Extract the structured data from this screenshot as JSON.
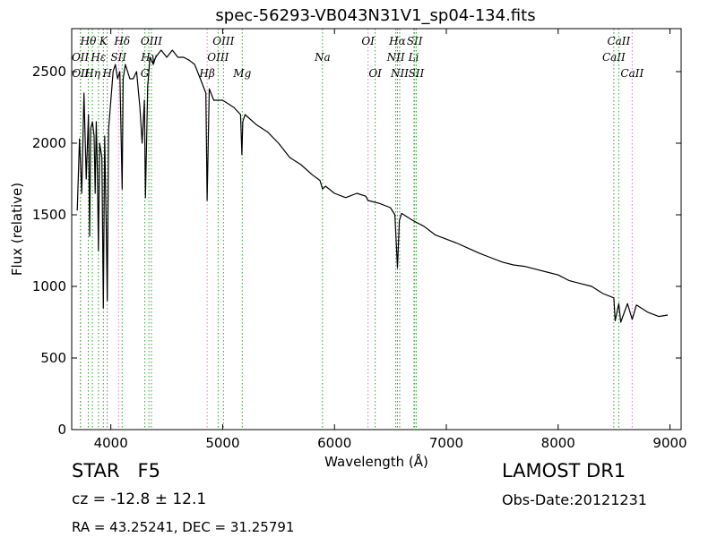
{
  "chart_data": {
    "type": "line",
    "title": "spec-56293-VB043N31V1_sp04-134.fits",
    "xlabel": "Wavelength (Å)",
    "ylabel": "Flux (relative)",
    "xlim": [
      3650,
      9100
    ],
    "ylim": [
      0,
      2800
    ],
    "xticks": [
      4000,
      5000,
      6000,
      7000,
      8000,
      9000
    ],
    "yticks": [
      0,
      500,
      1000,
      1500,
      2000,
      2500
    ],
    "grid": false,
    "series": [
      {
        "color": "#000000",
        "x": [
          3700,
          3720,
          3740,
          3760,
          3780,
          3800,
          3810,
          3820,
          3835,
          3850,
          3860,
          3870,
          3880,
          3889,
          3900,
          3920,
          3933,
          3945,
          3960,
          3968,
          3980,
          4000,
          4020,
          4040,
          4060,
          4080,
          4101,
          4110,
          4130,
          4150,
          4170,
          4200,
          4230,
          4260,
          4280,
          4300,
          4310,
          4330,
          4340,
          4350,
          4380,
          4400,
          4450,
          4500,
          4550,
          4600,
          4650,
          4700,
          4750,
          4800,
          4850,
          4861,
          4880,
          4920,
          5000,
          5100,
          5160,
          5172,
          5180,
          5200,
          5300,
          5400,
          5500,
          5600,
          5700,
          5800,
          5870,
          5893,
          5920,
          6000,
          6100,
          6200,
          6280,
          6300,
          6400,
          6500,
          6540,
          6563,
          6580,
          6600,
          6700,
          6800,
          6900,
          7000,
          7100,
          7200,
          7300,
          7400,
          7500,
          7600,
          7700,
          7800,
          7900,
          8000,
          8100,
          8200,
          8300,
          8400,
          8498,
          8510,
          8542,
          8560,
          8620,
          8662,
          8700,
          8800,
          8900,
          8980
        ],
        "y": [
          1530,
          2030,
          1650,
          2350,
          1750,
          2200,
          1350,
          2100,
          2150,
          2050,
          1650,
          2150,
          1800,
          1250,
          2000,
          1900,
          850,
          2050,
          1350,
          900,
          2100,
          2300,
          2500,
          2550,
          2450,
          2500,
          1680,
          2450,
          2550,
          2500,
          2450,
          2450,
          2500,
          2250,
          2000,
          2300,
          1620,
          2400,
          2500,
          2600,
          2550,
          2600,
          2650,
          2600,
          2650,
          2600,
          2600,
          2580,
          2550,
          2450,
          2350,
          1600,
          2380,
          2300,
          2300,
          2250,
          2200,
          1920,
          2150,
          2200,
          2130,
          2080,
          2000,
          1900,
          1850,
          1780,
          1740,
          1680,
          1700,
          1650,
          1620,
          1650,
          1630,
          1600,
          1580,
          1550,
          1500,
          1130,
          1460,
          1510,
          1460,
          1420,
          1360,
          1330,
          1300,
          1265,
          1230,
          1200,
          1170,
          1150,
          1140,
          1120,
          1100,
          1080,
          1040,
          1020,
          1000,
          950,
          920,
          760,
          880,
          750,
          880,
          770,
          870,
          820,
          790,
          800
        ]
      }
    ],
    "line_markers": [
      {
        "label": "Hθ",
        "wavelength": 3798,
        "row": "top1"
      },
      {
        "label": "Hη",
        "wavelength": 3835,
        "row": "top3"
      },
      {
        "label": "OII",
        "wavelength": 3727,
        "row": "top2"
      },
      {
        "label": "OII",
        "wavelength": 3729,
        "row": "top3"
      },
      {
        "label": "Hε",
        "wavelength": 3889,
        "row": "top2"
      },
      {
        "label": "K",
        "wavelength": 3933,
        "row": "top1"
      },
      {
        "label": "H",
        "wavelength": 3968,
        "row": "top3"
      },
      {
        "label": "SII",
        "wavelength": 4069,
        "row": "top2"
      },
      {
        "label": "Hδ",
        "wavelength": 4101,
        "row": "top1"
      },
      {
        "label": "G",
        "wavelength": 4304,
        "row": "top3"
      },
      {
        "label": "Hγ",
        "wavelength": 4340,
        "row": "top2"
      },
      {
        "label": "OIII",
        "wavelength": 4363,
        "row": "top1"
      },
      {
        "label": "Hβ",
        "wavelength": 4861,
        "row": "top3"
      },
      {
        "label": "OIII",
        "wavelength": 4959,
        "row": "top2"
      },
      {
        "label": "OIII",
        "wavelength": 5007,
        "row": "top1"
      },
      {
        "label": "Mg",
        "wavelength": 5175,
        "row": "top3"
      },
      {
        "label": "Na",
        "wavelength": 5893,
        "row": "top2"
      },
      {
        "label": "OI",
        "wavelength": 6300,
        "row": "top1"
      },
      {
        "label": "OI",
        "wavelength": 6364,
        "row": "top3"
      },
      {
        "label": "NII",
        "wavelength": 6548,
        "row": "top2"
      },
      {
        "label": "Hα",
        "wavelength": 6563,
        "row": "top1"
      },
      {
        "label": "NII",
        "wavelength": 6583,
        "row": "top3"
      },
      {
        "label": "Li",
        "wavelength": 6708,
        "row": "top2"
      },
      {
        "label": "SII",
        "wavelength": 6717,
        "row": "top1"
      },
      {
        "label": "SII",
        "wavelength": 6731,
        "row": "top3"
      },
      {
        "label": "CaII",
        "wavelength": 8498,
        "row": "top2"
      },
      {
        "label": "CaII",
        "wavelength": 8542,
        "row": "top1"
      },
      {
        "label": "CaII",
        "wavelength": 8662,
        "row": "top3"
      }
    ],
    "marker_colors": {
      "emission": "#2ca02c",
      "absorption": "#e377c2"
    }
  },
  "info": {
    "object_type": "STAR   F5",
    "cz": "cz = -12.8 ± 12.1",
    "ra_dec": "RA = 43.25241, DEC = 31.25791",
    "survey": "LAMOST DR1",
    "obs_date": "Obs-Date:20121231"
  }
}
